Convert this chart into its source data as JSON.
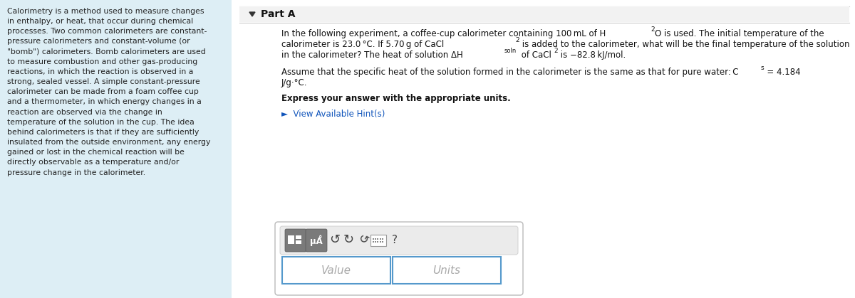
{
  "left_panel_bg": "#ddeef5",
  "left_text": "Calorimetry is a method used to measure changes\nin enthalpy, or heat, that occur during chemical\nprocesses. Two common calorimeters are constant-\npressure calorimeters and constant-volume (or\n\"bomb\") calorimeters. Bomb calorimeters are used\nto measure combustion and other gas-producing\nreactions, in which the reaction is observed in a\nstrong, sealed vessel. A simple constant-pressure\ncalorimeter can be made from a foam coffee cup\nand a thermometer, in which energy changes in a\nreaction are observed via the change in\ntemperature of the solution in the cup. The idea\nbehind calorimeters is that if they are sufficiently\ninsulated from the outside environment, any energy\ngained or lost in the chemical reaction will be\ndirectly observable as a temperature and/or\npressure change in the calorimeter.",
  "part_a_label": "Part A",
  "hint_text": "►  View Available Hint(s)",
  "hint_color": "#1155bb",
  "value_placeholder": "Value",
  "units_placeholder": "Units",
  "input_border": "#5599cc",
  "divider_color": "#cccccc",
  "part_a_bg": "#f2f2f2",
  "toolbar_bg": "#e0e0e0",
  "btn_bg": "#888888"
}
